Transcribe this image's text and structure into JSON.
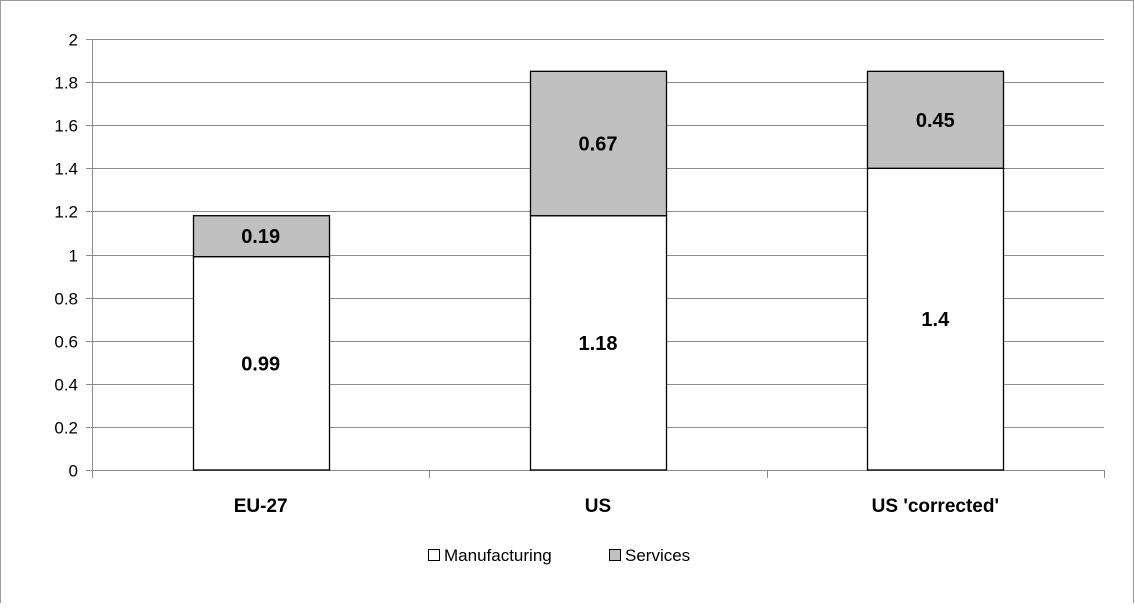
{
  "chart_data": {
    "type": "bar",
    "stacked": true,
    "categories": [
      "EU-27",
      "US",
      "US 'corrected'"
    ],
    "series": [
      {
        "name": "Manufacturing",
        "values": [
          0.99,
          1.18,
          1.4
        ],
        "labels": [
          "0.99",
          "1.18",
          "1.4"
        ],
        "color": "#ffffff"
      },
      {
        "name": "Services",
        "values": [
          0.19,
          0.67,
          0.45
        ],
        "labels": [
          "0.19",
          "0.67",
          "0.45"
        ],
        "color": "#c0c0c0"
      }
    ],
    "ylim": [
      0,
      2
    ],
    "yticks": [
      "0",
      "0.2",
      "0.4",
      "0.6",
      "0.8",
      "1",
      "1.2",
      "1.4",
      "1.6",
      "1.8",
      "2"
    ],
    "grid": true,
    "legend_position": "bottom",
    "title": "",
    "xlabel": "",
    "ylabel": ""
  }
}
